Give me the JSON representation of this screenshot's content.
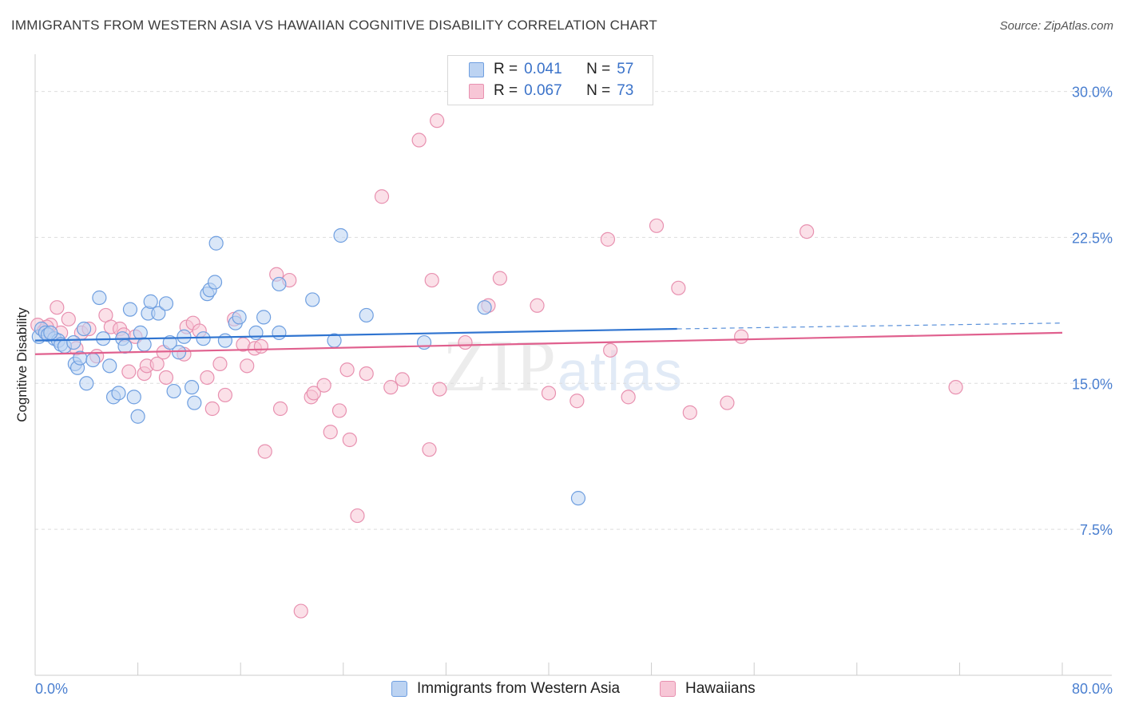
{
  "header": {
    "title": "IMMIGRANTS FROM WESTERN ASIA VS HAWAIIAN COGNITIVE DISABILITY CORRELATION CHART",
    "source_label": "Source:",
    "source_value": "ZipAtlas.com"
  },
  "watermark": {
    "part1": "ZIP",
    "part2": "atlas"
  },
  "colors": {
    "blue_fill": "#bcd3f2",
    "blue_stroke": "#6f9fe0",
    "blue_line": "#2f74d0",
    "pink_fill": "#f7c6d6",
    "pink_stroke": "#e891b0",
    "pink_line": "#e0608e",
    "grid": "#dddddd",
    "tick_text": "#4a7fd0"
  },
  "legend": {
    "rows": [
      {
        "series": "blue",
        "r_label": "R =",
        "r_value": "0.041",
        "n_label": "N =",
        "n_value": "57"
      },
      {
        "series": "pink",
        "r_label": "R =",
        "r_value": "0.067",
        "n_label": "N =",
        "n_value": "73"
      }
    ]
  },
  "bottom_legend": {
    "items": [
      {
        "series": "blue",
        "label": "Immigrants from Western Asia"
      },
      {
        "series": "pink",
        "label": "Hawaiians"
      }
    ]
  },
  "chart_data": {
    "type": "scatter",
    "title": "IMMIGRANTS FROM WESTERN ASIA VS HAWAIIAN COGNITIVE DISABILITY CORRELATION CHART",
    "xlabel": "",
    "ylabel": "Cognitive Disability",
    "xlim": [
      0,
      80
    ],
    "ylim": [
      0,
      31.5
    ],
    "x_tick_labels": [
      {
        "value": 0,
        "label": "0.0%"
      },
      {
        "value": 80,
        "label": "80.0%"
      }
    ],
    "x_minor_ticks": [
      8,
      16,
      24,
      32,
      40,
      48,
      56,
      64,
      72,
      80
    ],
    "y_ticks": [
      {
        "value": 7.5,
        "label": "7.5%"
      },
      {
        "value": 15.0,
        "label": "15.0%"
      },
      {
        "value": 22.5,
        "label": "22.5%"
      },
      {
        "value": 30.0,
        "label": "30.0%"
      }
    ],
    "series": [
      {
        "name": "Immigrants from Western Asia",
        "color_key": "blue",
        "trend": {
          "x0": 0,
          "y0": 17.2,
          "x1": 50,
          "y1": 17.8,
          "dashed_to_x": 80,
          "dashed_to_y": 18.1
        },
        "points": [
          [
            0.3,
            17.4
          ],
          [
            0.5,
            17.8
          ],
          [
            0.8,
            17.6
          ],
          [
            1.0,
            17.5
          ],
          [
            1.5,
            17.3
          ],
          [
            1.8,
            17.2
          ],
          [
            2.0,
            17.0
          ],
          [
            2.3,
            16.9
          ],
          [
            3.0,
            17.1
          ],
          [
            3.1,
            16.0
          ],
          [
            3.3,
            15.8
          ],
          [
            3.5,
            16.3
          ],
          [
            3.8,
            17.8
          ],
          [
            4.0,
            15.0
          ],
          [
            4.5,
            16.2
          ],
          [
            5.0,
            19.4
          ],
          [
            5.3,
            17.3
          ],
          [
            5.8,
            15.9
          ],
          [
            6.1,
            14.3
          ],
          [
            6.5,
            14.5
          ],
          [
            6.8,
            17.3
          ],
          [
            7.0,
            16.9
          ],
          [
            7.4,
            18.8
          ],
          [
            7.7,
            14.3
          ],
          [
            8.0,
            13.3
          ],
          [
            8.2,
            17.6
          ],
          [
            8.5,
            17.0
          ],
          [
            8.8,
            18.6
          ],
          [
            9.0,
            19.2
          ],
          [
            9.6,
            18.6
          ],
          [
            10.2,
            19.1
          ],
          [
            10.5,
            17.1
          ],
          [
            10.8,
            14.6
          ],
          [
            11.2,
            16.6
          ],
          [
            11.6,
            17.4
          ],
          [
            12.2,
            14.8
          ],
          [
            12.4,
            14.0
          ],
          [
            13.1,
            17.3
          ],
          [
            13.4,
            19.6
          ],
          [
            13.6,
            19.8
          ],
          [
            14.0,
            20.2
          ],
          [
            14.1,
            22.2
          ],
          [
            14.8,
            17.2
          ],
          [
            15.6,
            18.1
          ],
          [
            15.9,
            18.4
          ],
          [
            17.2,
            17.6
          ],
          [
            17.8,
            18.4
          ],
          [
            19.0,
            20.1
          ],
          [
            19.0,
            17.6
          ],
          [
            21.6,
            19.3
          ],
          [
            23.3,
            17.2
          ],
          [
            23.8,
            22.6
          ],
          [
            25.8,
            18.5
          ],
          [
            30.3,
            17.1
          ],
          [
            35.0,
            18.9
          ],
          [
            42.3,
            9.1
          ],
          [
            1.2,
            17.6
          ]
        ]
      },
      {
        "name": "Hawaiians",
        "color_key": "pink",
        "trend": {
          "x0": 0,
          "y0": 16.5,
          "x1": 80,
          "y1": 17.6
        },
        "points": [
          [
            0.2,
            18.0
          ],
          [
            0.7,
            17.7
          ],
          [
            1.2,
            18.0
          ],
          [
            1.7,
            18.9
          ],
          [
            2.0,
            17.6
          ],
          [
            2.6,
            18.3
          ],
          [
            3.2,
            16.8
          ],
          [
            3.6,
            17.6
          ],
          [
            4.2,
            17.8
          ],
          [
            4.8,
            16.4
          ],
          [
            5.5,
            18.5
          ],
          [
            5.9,
            17.9
          ],
          [
            6.6,
            17.8
          ],
          [
            6.9,
            17.5
          ],
          [
            7.3,
            15.6
          ],
          [
            7.8,
            17.4
          ],
          [
            8.5,
            15.5
          ],
          [
            8.7,
            15.9
          ],
          [
            9.5,
            16.0
          ],
          [
            10.0,
            16.6
          ],
          [
            10.2,
            15.3
          ],
          [
            11.6,
            16.5
          ],
          [
            11.8,
            17.9
          ],
          [
            12.3,
            18.1
          ],
          [
            12.8,
            17.7
          ],
          [
            13.4,
            15.3
          ],
          [
            13.8,
            13.7
          ],
          [
            14.4,
            16.0
          ],
          [
            14.8,
            14.4
          ],
          [
            15.5,
            18.3
          ],
          [
            16.2,
            17.0
          ],
          [
            16.5,
            15.9
          ],
          [
            17.1,
            16.8
          ],
          [
            17.6,
            16.9
          ],
          [
            17.9,
            11.5
          ],
          [
            18.8,
            20.6
          ],
          [
            19.1,
            13.7
          ],
          [
            19.8,
            20.3
          ],
          [
            20.7,
            3.3
          ],
          [
            21.5,
            14.3
          ],
          [
            21.7,
            14.5
          ],
          [
            22.5,
            14.9
          ],
          [
            23.0,
            12.5
          ],
          [
            23.7,
            13.6
          ],
          [
            24.3,
            15.7
          ],
          [
            24.5,
            12.1
          ],
          [
            25.1,
            8.2
          ],
          [
            25.8,
            15.5
          ],
          [
            27.0,
            24.6
          ],
          [
            27.7,
            14.8
          ],
          [
            28.6,
            15.2
          ],
          [
            29.9,
            27.5
          ],
          [
            30.7,
            11.6
          ],
          [
            30.9,
            20.3
          ],
          [
            31.3,
            28.5
          ],
          [
            31.5,
            14.7
          ],
          [
            33.5,
            17.1
          ],
          [
            35.3,
            19.0
          ],
          [
            36.2,
            20.4
          ],
          [
            39.1,
            19.0
          ],
          [
            40.0,
            14.5
          ],
          [
            42.2,
            14.1
          ],
          [
            44.6,
            22.4
          ],
          [
            44.8,
            16.7
          ],
          [
            46.2,
            14.3
          ],
          [
            48.4,
            23.1
          ],
          [
            50.1,
            19.9
          ],
          [
            51.0,
            13.5
          ],
          [
            53.9,
            14.0
          ],
          [
            55.0,
            17.4
          ],
          [
            60.1,
            22.8
          ],
          [
            71.7,
            14.8
          ],
          [
            0.9,
            17.9
          ]
        ]
      }
    ]
  }
}
